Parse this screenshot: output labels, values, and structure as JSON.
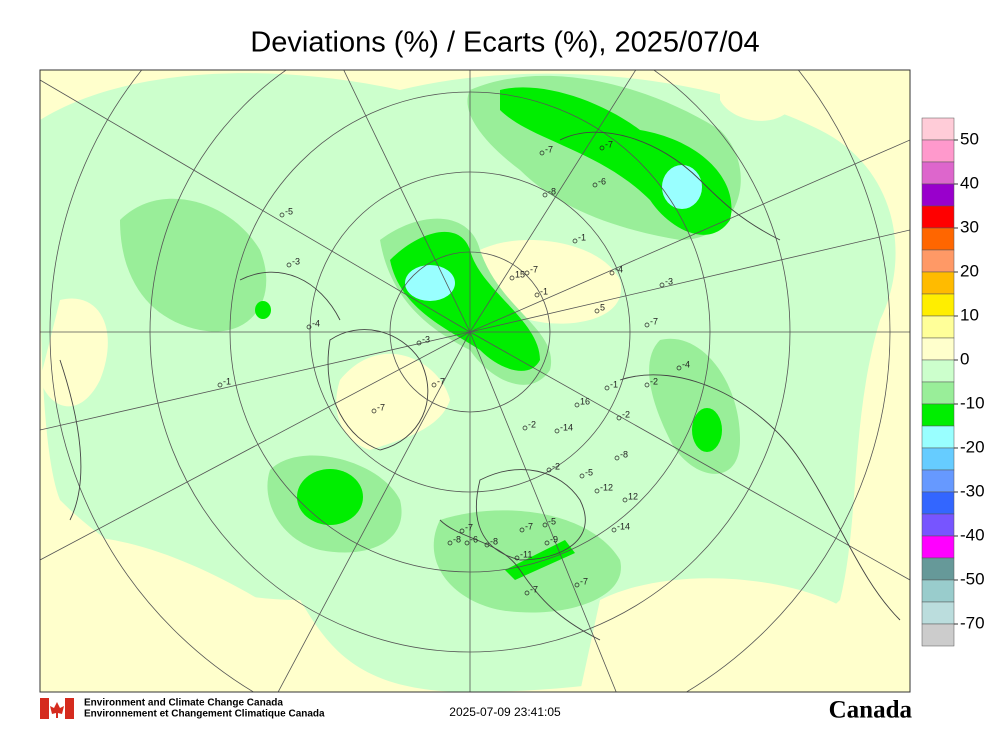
{
  "title": "Deviations (%) / Ecarts (%), 2025/07/04",
  "legend": {
    "colors": [
      "#ffccd8",
      "#ff99cc",
      "#dd66cc",
      "#9900cc",
      "#ff0000",
      "#ff6600",
      "#ff9966",
      "#ffbb00",
      "#ffee00",
      "#ffff99",
      "#ffffcc",
      "#ccffcc",
      "#99ee99",
      "#00ee00",
      "#99ffff",
      "#66ccff",
      "#6699ff",
      "#3366ff",
      "#7755ff",
      "#ff00ff",
      "#669999",
      "#99cccc",
      "#bbdddd",
      "#cccccc"
    ],
    "labels": [
      50,
      40,
      30,
      20,
      10,
      0,
      -10,
      -20,
      -30,
      -40,
      -50,
      -70
    ]
  },
  "stations": [
    "-7",
    "-7",
    "-8",
    "-6",
    "-5",
    "-3",
    "-1",
    "-4",
    "-7",
    "-3",
    "5",
    "-7",
    "-1",
    "15",
    "12",
    "-4",
    "-3",
    "-7",
    "-4",
    "-1",
    "-1",
    "-2",
    "16",
    "-2",
    "-14",
    "-8",
    "-5",
    "-12",
    "-2",
    "-14",
    "-7",
    "-11",
    "-9",
    "-5",
    "-7",
    "-8",
    "-6",
    "-7",
    "-7",
    "-7",
    "-8",
    "-2"
  ],
  "footer": {
    "agency_en": "Environment and Climate Change Canada",
    "agency_fr": "Environnement et Changement Climatique Canada",
    "timestamp": "2025-07-09 23:41:05",
    "wordmark": "Canada"
  }
}
